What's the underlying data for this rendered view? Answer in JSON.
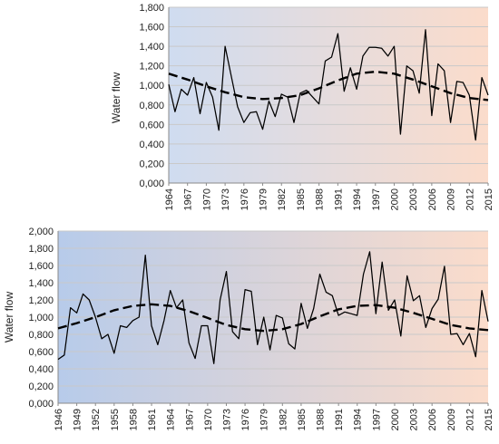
{
  "chart_data": [
    {
      "type": "line",
      "ylabel": "Water flow",
      "ylim": [
        0,
        1800
      ],
      "yticks": [
        "0,000",
        "0,200",
        "0,400",
        "0,600",
        "0,800",
        "1,000",
        "1,200",
        "1,400",
        "1,600",
        "1,800"
      ],
      "xticks": [
        "1964",
        "1967",
        "1970",
        "1973",
        "1976",
        "1979",
        "1982",
        "1985",
        "1988",
        "1991",
        "1994",
        "1997",
        "2000",
        "2003",
        "2006",
        "2009",
        "2012",
        "2015"
      ],
      "background_gradient": [
        "#cfdcf0",
        "#fbdccb"
      ],
      "series": [
        {
          "x": [
            1964,
            1965,
            1966,
            1967,
            1968,
            1969,
            1970,
            1971,
            1972,
            1973,
            1974,
            1975,
            1976,
            1977,
            1978,
            1979,
            1980,
            1981,
            1982,
            1983,
            1984,
            1985,
            1986,
            1987,
            1988,
            1989,
            1990,
            1991,
            1992,
            1993,
            1994,
            1995,
            1996,
            1997,
            1998,
            1999,
            2000,
            2001,
            2002,
            2003,
            2004,
            2005,
            2006,
            2007,
            2008,
            2009,
            2010,
            2011,
            2012,
            2013,
            2014,
            2015
          ],
          "values": [
            1010,
            730,
            960,
            900,
            1080,
            710,
            1030,
            880,
            540,
            1400,
            1090,
            780,
            620,
            720,
            730,
            550,
            840,
            680,
            910,
            880,
            620,
            920,
            950,
            880,
            810,
            1250,
            1290,
            1530,
            940,
            1180,
            960,
            1300,
            1390,
            1390,
            1380,
            1300,
            1400,
            500,
            1200,
            1150,
            920,
            1570,
            690,
            1220,
            1150,
            620,
            1040,
            1030,
            900,
            440,
            1080,
            900
          ]
        },
        {
          "style": "dashed",
          "x": [
            1964,
            1967,
            1970,
            1973,
            1976,
            1979,
            1982,
            1985,
            1988,
            1991,
            1994,
            1997,
            2000,
            2003,
            2006,
            2009,
            2012,
            2015
          ],
          "values": [
            1120,
            1060,
            990,
            930,
            880,
            860,
            870,
            900,
            970,
            1050,
            1120,
            1140,
            1120,
            1060,
            990,
            920,
            870,
            850
          ]
        }
      ]
    },
    {
      "type": "line",
      "ylabel": "Water flow",
      "ylim": [
        0,
        2000
      ],
      "yticks": [
        "0,000",
        "0,200",
        "0,400",
        "0,600",
        "0,800",
        "1,000",
        "1,200",
        "1,400",
        "1,600",
        "1,800",
        "2,000"
      ],
      "xticks": [
        "1946",
        "1949",
        "1952",
        "1955",
        "1958",
        "1961",
        "1964",
        "1967",
        "1970",
        "1973",
        "1976",
        "1979",
        "1982",
        "1985",
        "1988",
        "1991",
        "1994",
        "1997",
        "2000",
        "2003",
        "2006",
        "2009",
        "2012",
        "2015"
      ],
      "background_gradient": [
        "#b7cbea",
        "#fbdccb"
      ],
      "series": [
        {
          "x": [
            1946,
            1947,
            1948,
            1949,
            1950,
            1951,
            1952,
            1953,
            1954,
            1955,
            1956,
            1957,
            1958,
            1959,
            1960,
            1961,
            1962,
            1963,
            1964,
            1965,
            1966,
            1967,
            1968,
            1969,
            1970,
            1971,
            1972,
            1973,
            1974,
            1975,
            1976,
            1977,
            1978,
            1979,
            1980,
            1981,
            1982,
            1983,
            1984,
            1985,
            1986,
            1987,
            1988,
            1989,
            1990,
            1991,
            1992,
            1993,
            1994,
            1995,
            1996,
            1997,
            1998,
            1999,
            2000,
            2001,
            2002,
            2003,
            2004,
            2005,
            2006,
            2007,
            2008,
            2009,
            2010,
            2011,
            2012,
            2013,
            2014,
            2015
          ],
          "values": [
            510,
            560,
            1110,
            1050,
            1270,
            1200,
            1000,
            750,
            800,
            580,
            900,
            880,
            960,
            1000,
            1720,
            900,
            680,
            960,
            1310,
            1110,
            1200,
            700,
            520,
            900,
            900,
            460,
            1200,
            1530,
            830,
            750,
            1320,
            1300,
            680,
            1000,
            620,
            1020,
            990,
            690,
            630,
            1160,
            870,
            1100,
            1500,
            1290,
            1250,
            1020,
            1060,
            1040,
            1020,
            1500,
            1760,
            1040,
            1640,
            1080,
            1200,
            780,
            1480,
            1190,
            1250,
            880,
            1100,
            1210,
            1590,
            800,
            810,
            680,
            810,
            540,
            1310,
            950
          ]
        },
        {
          "style": "dashed",
          "x": [
            1946,
            1949,
            1952,
            1955,
            1958,
            1961,
            1964,
            1967,
            1970,
            1973,
            1976,
            1979,
            1982,
            1985,
            1988,
            1991,
            1994,
            1997,
            2000,
            2003,
            2006,
            2009,
            2012,
            2015
          ],
          "values": [
            870,
            930,
            1000,
            1080,
            1130,
            1150,
            1130,
            1070,
            990,
            910,
            860,
            840,
            860,
            920,
            1010,
            1090,
            1130,
            1140,
            1110,
            1050,
            980,
            910,
            870,
            850
          ]
        }
      ]
    }
  ]
}
